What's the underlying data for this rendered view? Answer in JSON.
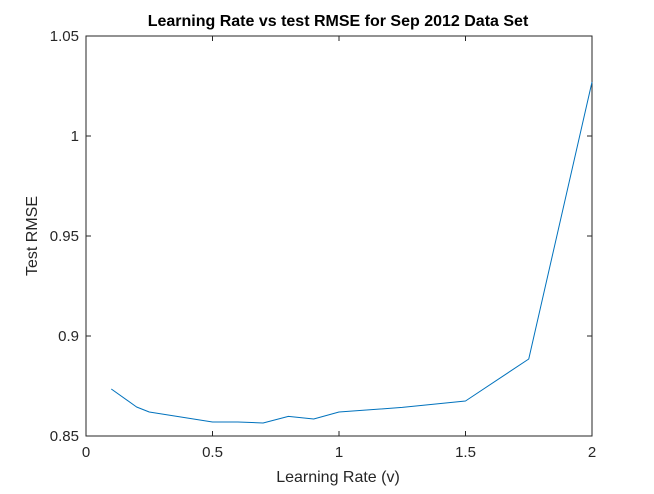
{
  "chart_data": {
    "type": "line",
    "title": "Learning Rate vs test RMSE for Sep 2012 Data Set",
    "xlabel": "Learning Rate (v)",
    "ylabel": "Test RMSE",
    "xlim": [
      0,
      2
    ],
    "ylim": [
      0.85,
      1.05
    ],
    "x_ticks": [
      "0",
      "0.5",
      "1",
      "1.5",
      "2"
    ],
    "y_ticks": [
      "0.85",
      "0.9",
      "0.95",
      "1",
      "1.05"
    ],
    "grid": false,
    "legend": "none",
    "series": [
      {
        "color": "#0072bd",
        "x": [
          0.1,
          0.2,
          0.25,
          0.3,
          0.4,
          0.5,
          0.6,
          0.7,
          0.8,
          0.9,
          1.0,
          1.25,
          1.5,
          1.75,
          2.0
        ],
        "y": [
          0.8735,
          0.8645,
          0.862,
          0.861,
          0.859,
          0.857,
          0.857,
          0.8565,
          0.8598,
          0.8585,
          0.862,
          0.8643,
          0.8675,
          0.8885,
          1.027
        ]
      }
    ]
  }
}
